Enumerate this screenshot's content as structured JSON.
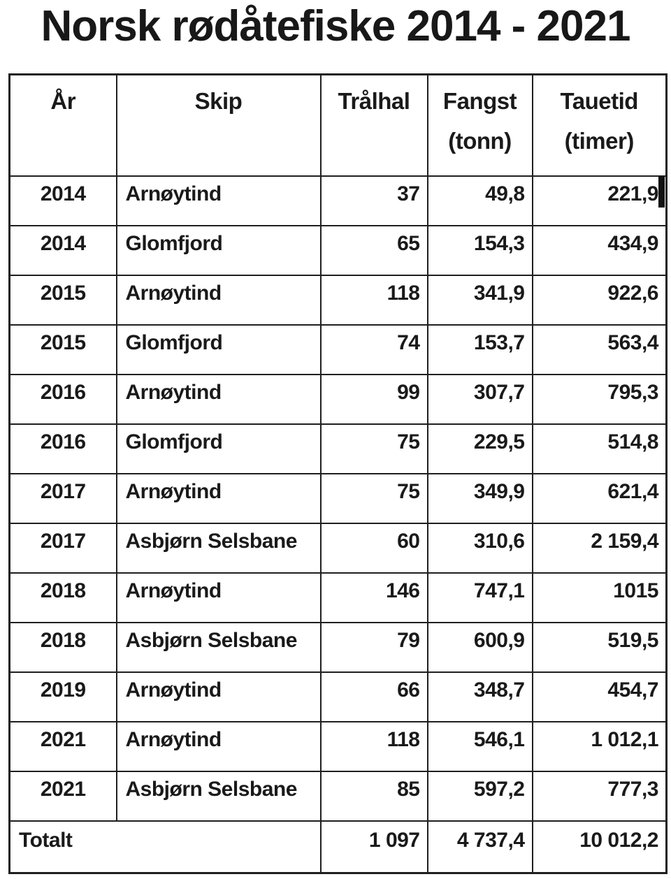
{
  "title": "Norsk rødåtefiske 2014 - 2021",
  "table": {
    "columns": [
      {
        "label": "År",
        "sub": ""
      },
      {
        "label": "Skip",
        "sub": ""
      },
      {
        "label": "Trålhal",
        "sub": ""
      },
      {
        "label": "Fangst",
        "sub": "(tonn)"
      },
      {
        "label": "Tauetid",
        "sub": "(timer)"
      }
    ],
    "rows": [
      [
        "2014",
        "Arnøytind",
        "37",
        "49,8",
        "221,9"
      ],
      [
        "2014",
        "Glomfjord",
        "65",
        "154,3",
        "434,9"
      ],
      [
        "2015",
        "Arnøytind",
        "118",
        "341,9",
        "922,6"
      ],
      [
        "2015",
        "Glomfjord",
        "74",
        "153,7",
        "563,4"
      ],
      [
        "2016",
        "Arnøytind",
        "99",
        "307,7",
        "795,3"
      ],
      [
        "2016",
        "Glomfjord",
        "75",
        "229,5",
        "514,8"
      ],
      [
        "2017",
        "Arnøytind",
        "75",
        "349,9",
        "621,4"
      ],
      [
        "2017",
        "Asbjørn Selsbane",
        "60",
        "310,6",
        "2 159,4"
      ],
      [
        "2018",
        "Arnøytind",
        "146",
        "747,1",
        "1015"
      ],
      [
        "2018",
        "Asbjørn Selsbane",
        "79",
        "600,9",
        "519,5"
      ],
      [
        "2019",
        "Arnøytind",
        "66",
        "348,7",
        "454,7"
      ],
      [
        "2021",
        "Arnøytind",
        "118",
        "546,1",
        "1 012,1"
      ],
      [
        "2021",
        "Asbjørn Selsbane",
        "85",
        "597,2",
        "777,3"
      ]
    ],
    "total": {
      "label": "Totalt",
      "hauls": "1 097",
      "catch": "4 737,4",
      "towtime": "10 012,2"
    }
  },
  "colors": {
    "text": "#1a1a1a",
    "border": "#1f1f1f",
    "background": "#ffffff"
  },
  "chart_data": {
    "type": "table",
    "title": "Norsk rødåtefiske 2014 - 2021",
    "columns": [
      "År",
      "Skip",
      "Trålhal",
      "Fangst (tonn)",
      "Tauetid (timer)"
    ],
    "rows": [
      {
        "year": 2014,
        "ship": "Arnøytind",
        "hauls": 37,
        "catch_tonn": 49.8,
        "towtime_hours": 221.9
      },
      {
        "year": 2014,
        "ship": "Glomfjord",
        "hauls": 65,
        "catch_tonn": 154.3,
        "towtime_hours": 434.9
      },
      {
        "year": 2015,
        "ship": "Arnøytind",
        "hauls": 118,
        "catch_tonn": 341.9,
        "towtime_hours": 922.6
      },
      {
        "year": 2015,
        "ship": "Glomfjord",
        "hauls": 74,
        "catch_tonn": 153.7,
        "towtime_hours": 563.4
      },
      {
        "year": 2016,
        "ship": "Arnøytind",
        "hauls": 99,
        "catch_tonn": 307.7,
        "towtime_hours": 795.3
      },
      {
        "year": 2016,
        "ship": "Glomfjord",
        "hauls": 75,
        "catch_tonn": 229.5,
        "towtime_hours": 514.8
      },
      {
        "year": 2017,
        "ship": "Arnøytind",
        "hauls": 75,
        "catch_tonn": 349.9,
        "towtime_hours": 621.4
      },
      {
        "year": 2017,
        "ship": "Asbjørn Selsbane",
        "hauls": 60,
        "catch_tonn": 310.6,
        "towtime_hours": 2159.4
      },
      {
        "year": 2018,
        "ship": "Arnøytind",
        "hauls": 146,
        "catch_tonn": 747.1,
        "towtime_hours": 1015
      },
      {
        "year": 2018,
        "ship": "Asbjørn Selsbane",
        "hauls": 79,
        "catch_tonn": 600.9,
        "towtime_hours": 519.5
      },
      {
        "year": 2019,
        "ship": "Arnøytind",
        "hauls": 66,
        "catch_tonn": 348.7,
        "towtime_hours": 454.7
      },
      {
        "year": 2021,
        "ship": "Arnøytind",
        "hauls": 118,
        "catch_tonn": 546.1,
        "towtime_hours": 1012.1
      },
      {
        "year": 2021,
        "ship": "Asbjørn Selsbane",
        "hauls": 85,
        "catch_tonn": 597.2,
        "towtime_hours": 777.3
      }
    ],
    "total": {
      "hauls": 1097,
      "catch_tonn": 4737.4,
      "towtime_hours": 10012.2
    }
  }
}
